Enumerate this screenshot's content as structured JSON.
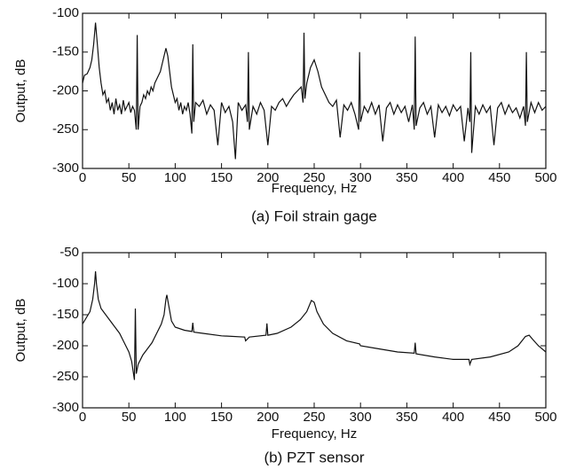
{
  "chart_data": [
    {
      "type": "line",
      "title": "(a) Foil strain gage",
      "x_label": "Frequency, Hz",
      "y_label": "Output, dB",
      "color": "#111",
      "xlim": [
        0,
        500
      ],
      "xticks": [
        0,
        50,
        100,
        150,
        200,
        250,
        300,
        350,
        400,
        450,
        500
      ],
      "ylim": [
        -300,
        -100
      ],
      "yticks": [
        -300,
        -250,
        -200,
        -150,
        -100
      ],
      "x": [
        0,
        2,
        5,
        8,
        10,
        12,
        14,
        16,
        18,
        20,
        22,
        24,
        26,
        28,
        30,
        32,
        34,
        36,
        38,
        40,
        42,
        44,
        46,
        48,
        50,
        52,
        54,
        56,
        58,
        59,
        60,
        62,
        64,
        66,
        68,
        70,
        72,
        74,
        76,
        78,
        80,
        82,
        84,
        86,
        88,
        90,
        92,
        94,
        96,
        98,
        100,
        102,
        104,
        106,
        108,
        110,
        112,
        114,
        116,
        118,
        119,
        120,
        122,
        126,
        130,
        134,
        138,
        142,
        146,
        150,
        154,
        158,
        162,
        165,
        168,
        172,
        176,
        178,
        179,
        180,
        184,
        188,
        192,
        196,
        200,
        204,
        208,
        212,
        216,
        220,
        224,
        228,
        232,
        236,
        238,
        239,
        240,
        242,
        246,
        250,
        254,
        258,
        262,
        266,
        270,
        274,
        278,
        282,
        286,
        290,
        294,
        298,
        299,
        300,
        304,
        308,
        312,
        316,
        320,
        324,
        328,
        332,
        336,
        340,
        344,
        348,
        352,
        356,
        358,
        359,
        360,
        364,
        368,
        372,
        376,
        380,
        384,
        388,
        392,
        396,
        400,
        404,
        408,
        412,
        416,
        418,
        419,
        420,
        424,
        428,
        432,
        436,
        440,
        444,
        448,
        452,
        456,
        460,
        464,
        468,
        472,
        476,
        478,
        479,
        480,
        484,
        488,
        492,
        496,
        500
      ],
      "values": [
        -190,
        -180,
        -178,
        -170,
        -160,
        -140,
        -112,
        -140,
        -170,
        -190,
        -205,
        -200,
        -215,
        -210,
        -225,
        -215,
        -230,
        -210,
        -225,
        -218,
        -230,
        -212,
        -225,
        -220,
        -215,
        -228,
        -220,
        -225,
        -250,
        -128,
        -250,
        -220,
        -215,
        -205,
        -210,
        -200,
        -205,
        -195,
        -200,
        -190,
        -185,
        -180,
        -175,
        -165,
        -155,
        -145,
        -155,
        -175,
        -195,
        -205,
        -215,
        -210,
        -225,
        -215,
        -230,
        -220,
        -225,
        -215,
        -230,
        -255,
        -140,
        -240,
        -215,
        -220,
        -212,
        -230,
        -218,
        -225,
        -270,
        -215,
        -228,
        -220,
        -240,
        -288,
        -215,
        -225,
        -218,
        -240,
        -150,
        -250,
        -220,
        -230,
        -215,
        -225,
        -270,
        -220,
        -225,
        -215,
        -210,
        -220,
        -212,
        -205,
        -200,
        -195,
        -215,
        -125,
        -210,
        -190,
        -170,
        -160,
        -175,
        -195,
        -205,
        -215,
        -220,
        -212,
        -260,
        -218,
        -225,
        -215,
        -230,
        -250,
        -150,
        -240,
        -220,
        -228,
        -215,
        -230,
        -218,
        -265,
        -222,
        -215,
        -230,
        -218,
        -228,
        -220,
        -240,
        -218,
        -250,
        -130,
        -245,
        -222,
        -215,
        -230,
        -220,
        -260,
        -218,
        -228,
        -220,
        -232,
        -218,
        -226,
        -220,
        -265,
        -222,
        -240,
        -150,
        -280,
        -220,
        -230,
        -218,
        -228,
        -220,
        -270,
        -222,
        -215,
        -230,
        -218,
        -228,
        -222,
        -235,
        -220,
        -245,
        -150,
        -240,
        -215,
        -228,
        -215,
        -225,
        -220
      ]
    },
    {
      "type": "line",
      "title": "(b) PZT sensor",
      "x_label": "Frequency, Hz",
      "y_label": "Output, dB",
      "color": "#111",
      "xlim": [
        0,
        500
      ],
      "xticks": [
        0,
        50,
        100,
        150,
        200,
        250,
        300,
        350,
        400,
        450,
        500
      ],
      "ylim": [
        -300,
        -50
      ],
      "yticks": [
        -300,
        -250,
        -200,
        -150,
        -100,
        -50
      ],
      "x": [
        0,
        4,
        8,
        11,
        13,
        14,
        15,
        17,
        20,
        25,
        30,
        35,
        40,
        45,
        50,
        53,
        55,
        56,
        57,
        58,
        60,
        65,
        70,
        75,
        80,
        85,
        88,
        90,
        91,
        93,
        96,
        100,
        110,
        118,
        119,
        120,
        130,
        150,
        175,
        176,
        180,
        198,
        199,
        200,
        210,
        225,
        235,
        242,
        247,
        250,
        253,
        260,
        270,
        285,
        299,
        300,
        320,
        340,
        358,
        359,
        360,
        380,
        400,
        417,
        418,
        420,
        440,
        460,
        470,
        478,
        482,
        486,
        492,
        500
      ],
      "values": [
        -165,
        -155,
        -145,
        -125,
        -100,
        -80,
        -100,
        -125,
        -140,
        -150,
        -160,
        -170,
        -180,
        -195,
        -210,
        -225,
        -245,
        -255,
        -140,
        -245,
        -230,
        -215,
        -205,
        -195,
        -180,
        -165,
        -150,
        -125,
        -118,
        -135,
        -160,
        -170,
        -175,
        -177,
        -163,
        -178,
        -180,
        -184,
        -186,
        -192,
        -186,
        -183,
        -164,
        -183,
        -180,
        -170,
        -158,
        -145,
        -127,
        -130,
        -145,
        -165,
        -180,
        -192,
        -197,
        -200,
        -205,
        -210,
        -212,
        -195,
        -213,
        -218,
        -222,
        -222,
        -230,
        -222,
        -218,
        -210,
        -200,
        -185,
        -183,
        -190,
        -200,
        -210
      ]
    }
  ]
}
